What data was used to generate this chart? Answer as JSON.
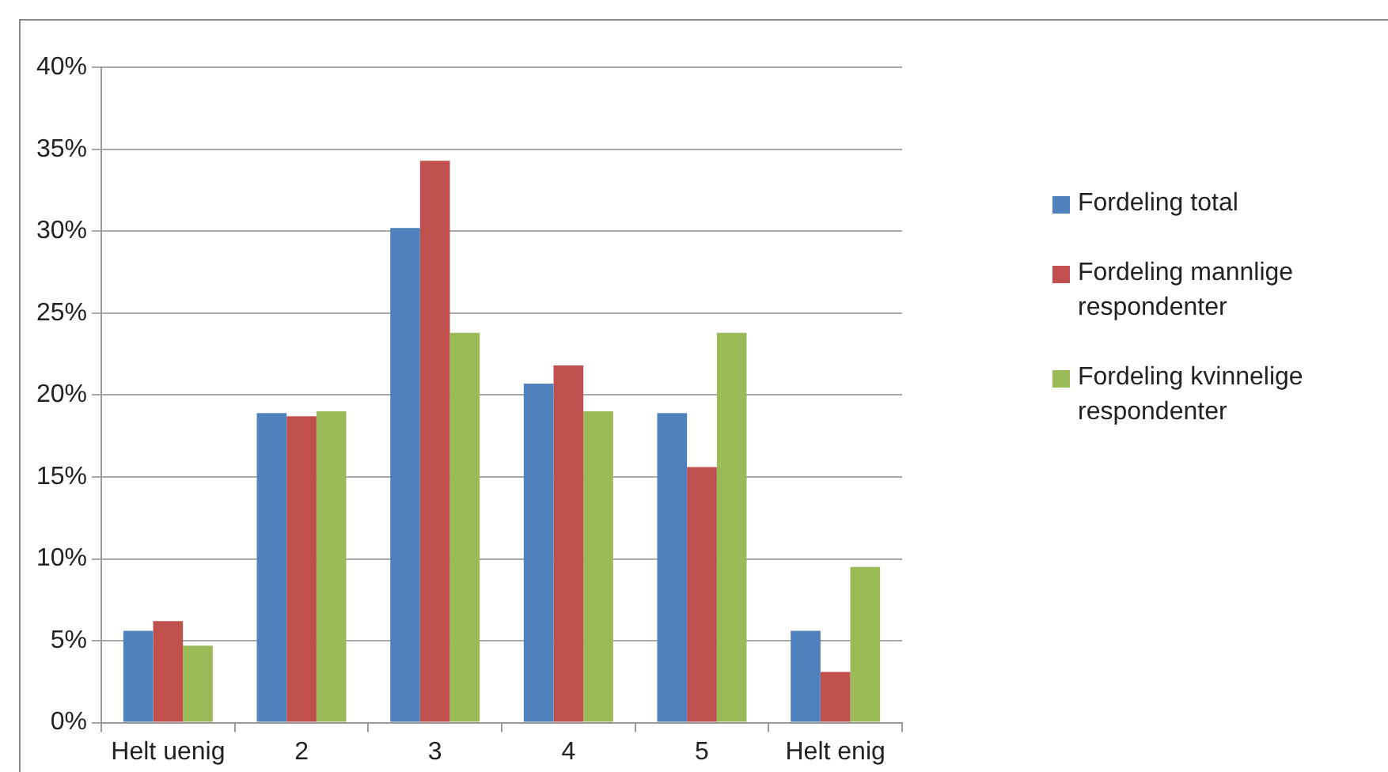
{
  "chart_data": {
    "type": "bar",
    "categories": [
      "Helt uenig",
      "2",
      "3",
      "4",
      "5",
      "Helt enig"
    ],
    "series": [
      {
        "name": "Fordeling total",
        "color": "#4f81bd",
        "values": [
          5.6,
          18.9,
          30.2,
          20.7,
          18.9,
          5.6
        ]
      },
      {
        "name": "Fordeling mannlige respondenter",
        "color": "#c0504d",
        "values": [
          6.2,
          18.7,
          34.3,
          21.8,
          15.6,
          3.1
        ]
      },
      {
        "name": "Fordeling kvinnelige respondenter",
        "color": "#9bbb59",
        "values": [
          4.7,
          19.0,
          23.8,
          19.0,
          23.8,
          9.5
        ]
      }
    ],
    "ylim": [
      0,
      40
    ],
    "yticks": [
      {
        "value": 0,
        "label": "0%"
      },
      {
        "value": 5,
        "label": "5%"
      },
      {
        "value": 10,
        "label": "10%"
      },
      {
        "value": 15,
        "label": "15%"
      },
      {
        "value": 20,
        "label": "20%"
      },
      {
        "value": 25,
        "label": "25%"
      },
      {
        "value": 30,
        "label": "30%"
      },
      {
        "value": 35,
        "label": "35%"
      },
      {
        "value": 40,
        "label": "40%"
      }
    ],
    "grid": "y",
    "legend": "right"
  }
}
